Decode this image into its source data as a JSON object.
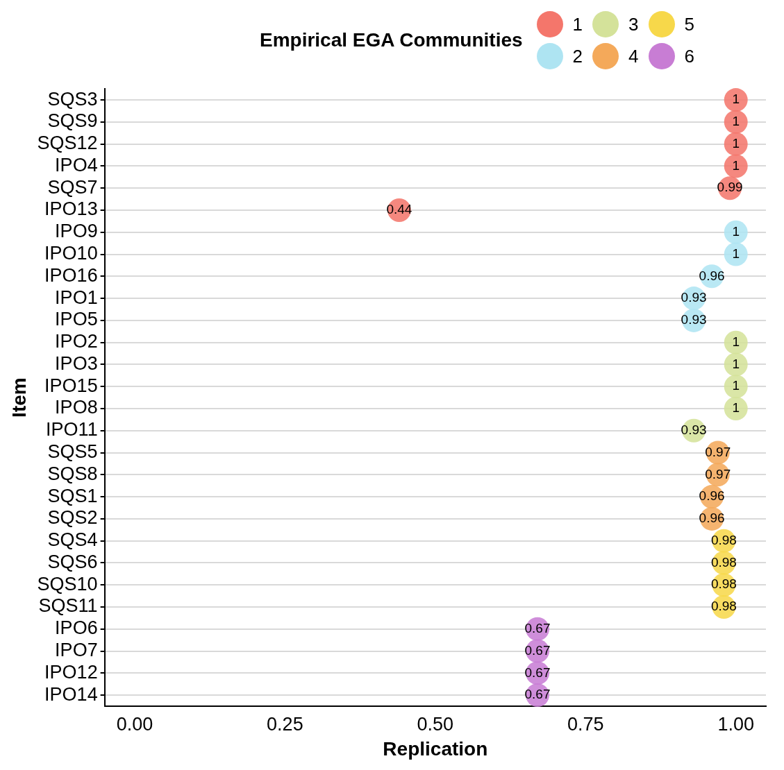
{
  "chart_data": {
    "type": "lollipop",
    "orientation": "horizontal",
    "xlabel": "Replication",
    "ylabel": "Item",
    "legend_title": "Empirical EGA Communities",
    "legend": "top right",
    "grid": "y",
    "data_labels": true,
    "marker": "circle",
    "categories": [
      "SQS3",
      "SQS9",
      "SQS12",
      "IPO4",
      "SQS7",
      "IPO13",
      "IPO9",
      "IPO10",
      "IPO16",
      "IPO1",
      "IPO5",
      "IPO2",
      "IPO3",
      "IPO15",
      "IPO8",
      "IPO11",
      "SQS5",
      "SQS8",
      "SQS1",
      "SQS2",
      "SQS4",
      "SQS6",
      "SQS10",
      "SQS11",
      "IPO6",
      "IPO7",
      "IPO12",
      "IPO14"
    ],
    "xlim": [
      -0.05,
      1.05
    ],
    "xticks": [
      {
        "value": 0,
        "label": "0.00"
      },
      {
        "value": 0.25,
        "label": "0.25"
      },
      {
        "value": 0.5,
        "label": "0.50"
      },
      {
        "value": 0.75,
        "label": "0.75"
      },
      {
        "value": 1,
        "label": "1.00"
      }
    ],
    "series": [
      {
        "name": "1",
        "color": "#f4766b",
        "values": [
          1,
          1,
          1,
          1,
          0.99,
          0.44,
          null,
          null,
          null,
          null,
          null,
          null,
          null,
          null,
          null,
          null,
          null,
          null,
          null,
          null,
          null,
          null,
          null,
          null,
          null,
          null,
          null,
          null
        ]
      },
      {
        "name": "2",
        "color": "#aee4f2",
        "values": [
          null,
          null,
          null,
          null,
          null,
          null,
          1,
          1,
          0.96,
          0.93,
          0.93,
          null,
          null,
          null,
          null,
          null,
          null,
          null,
          null,
          null,
          null,
          null,
          null,
          null,
          null,
          null,
          null,
          null
        ]
      },
      {
        "name": "3",
        "color": "#d4e29a",
        "values": [
          null,
          null,
          null,
          null,
          null,
          null,
          null,
          null,
          null,
          null,
          null,
          1,
          1,
          1,
          1,
          0.93,
          null,
          null,
          null,
          null,
          null,
          null,
          null,
          null,
          null,
          null,
          null,
          null
        ]
      },
      {
        "name": "4",
        "color": "#f4a95a",
        "values": [
          null,
          null,
          null,
          null,
          null,
          null,
          null,
          null,
          null,
          null,
          null,
          null,
          null,
          null,
          null,
          null,
          0.97,
          0.97,
          0.96,
          0.96,
          null,
          null,
          null,
          null,
          null,
          null,
          null,
          null
        ]
      },
      {
        "name": "5",
        "color": "#f7d84a",
        "values": [
          null,
          null,
          null,
          null,
          null,
          null,
          null,
          null,
          null,
          null,
          null,
          null,
          null,
          null,
          null,
          null,
          null,
          null,
          null,
          null,
          0.98,
          0.98,
          0.98,
          0.98,
          null,
          null,
          null,
          null
        ]
      },
      {
        "name": "6",
        "color": "#c87dd4",
        "values": [
          null,
          null,
          null,
          null,
          null,
          null,
          null,
          null,
          null,
          null,
          null,
          null,
          null,
          null,
          null,
          null,
          null,
          null,
          null,
          null,
          null,
          null,
          null,
          null,
          0.67,
          0.67,
          0.67,
          0.67
        ]
      }
    ]
  }
}
